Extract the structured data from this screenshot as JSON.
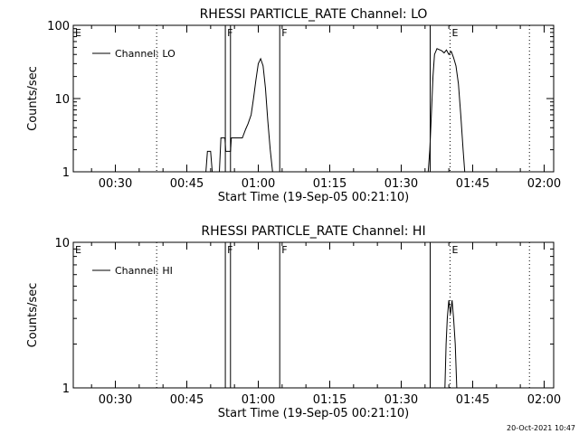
{
  "footer": {
    "timestamp": "20-Oct-2021 10:47"
  },
  "chart_data": [
    {
      "type": "line",
      "title": "RHESSI PARTICLE_RATE Channel: LO",
      "xlabel": "Start Time (19-Sep-05 00:21:10)",
      "ylabel": "Counts/sec",
      "yscale": "log",
      "ylim": [
        1,
        100
      ],
      "xlim": [
        "00:21:10",
        "02:02:00"
      ],
      "x_ticks": [
        "00:30",
        "00:45",
        "01:00",
        "01:15",
        "01:30",
        "01:45",
        "02:00"
      ],
      "y_ticks": [
        "1",
        "10",
        "100"
      ],
      "legend": {
        "position": "top-left",
        "entries": [
          "Channel: LO"
        ]
      },
      "markers": [
        {
          "time": "00:21:10",
          "label": "E",
          "style": "solid"
        },
        {
          "time": "00:38:40",
          "label": "",
          "style": "dotted"
        },
        {
          "time": "00:53:05",
          "label": "F",
          "style": "solid"
        },
        {
          "time": "00:54:10",
          "label": "",
          "style": "solid"
        },
        {
          "time": "01:04:30",
          "label": "F",
          "style": "solid"
        },
        {
          "time": "01:36:05",
          "label": "",
          "style": "solid"
        },
        {
          "time": "01:40:15",
          "label": "E",
          "style": "dotted"
        },
        {
          "time": "01:56:55",
          "label": "",
          "style": "dotted"
        }
      ],
      "series": [
        {
          "name": "Channel: LO",
          "points": [
            [
              "00:49:00",
              1
            ],
            [
              "00:49:20",
              1.9
            ],
            [
              "00:50:00",
              1.9
            ],
            [
              "00:50:20",
              1
            ],
            [
              "00:51:50",
              1
            ],
            [
              "00:52:10",
              2.9
            ],
            [
              "00:53:00",
              2.9
            ],
            [
              "00:53:10",
              1.9
            ],
            [
              "00:54:10",
              1.9
            ],
            [
              "00:54:20",
              2.9
            ],
            [
              "00:56:40",
              2.9
            ],
            [
              "00:57:20",
              3.8
            ],
            [
              "00:57:50",
              4.5
            ],
            [
              "00:58:30",
              6
            ],
            [
              "00:59:00",
              10
            ],
            [
              "00:59:30",
              18
            ],
            [
              "01:00:00",
              30
            ],
            [
              "01:00:30",
              35
            ],
            [
              "01:01:00",
              28
            ],
            [
              "01:01:30",
              14
            ],
            [
              "01:02:00",
              5
            ],
            [
              "01:02:30",
              2
            ],
            [
              "01:03:00",
              1
            ],
            [
              "01:35:40",
              1
            ],
            [
              "01:36:00",
              2
            ],
            [
              "01:36:20",
              6
            ],
            [
              "01:36:40",
              20
            ],
            [
              "01:37:00",
              40
            ],
            [
              "01:37:30",
              48
            ],
            [
              "01:38:30",
              45
            ],
            [
              "01:39:00",
              42
            ],
            [
              "01:39:30",
              46
            ],
            [
              "01:40:00",
              40
            ],
            [
              "01:40:30",
              44
            ],
            [
              "01:41:00",
              36
            ],
            [
              "01:41:30",
              28
            ],
            [
              "01:42:00",
              16
            ],
            [
              "01:42:30",
              6
            ],
            [
              "01:43:00",
              2
            ],
            [
              "01:43:20",
              1
            ]
          ]
        }
      ]
    },
    {
      "type": "line",
      "title": "RHESSI PARTICLE_RATE Channel: HI",
      "xlabel": "Start Time (19-Sep-05 00:21:10)",
      "ylabel": "Counts/sec",
      "yscale": "log",
      "ylim": [
        1,
        10
      ],
      "xlim": [
        "00:21:10",
        "02:02:00"
      ],
      "x_ticks": [
        "00:30",
        "00:45",
        "01:00",
        "01:15",
        "01:30",
        "01:45",
        "02:00"
      ],
      "y_ticks": [
        "1",
        "10"
      ],
      "legend": {
        "position": "top-left",
        "entries": [
          "Channel: HI"
        ]
      },
      "markers": [
        {
          "time": "00:21:10",
          "label": "E",
          "style": "solid"
        },
        {
          "time": "00:38:40",
          "label": "",
          "style": "dotted"
        },
        {
          "time": "00:53:05",
          "label": "F",
          "style": "solid"
        },
        {
          "time": "00:54:10",
          "label": "",
          "style": "solid"
        },
        {
          "time": "01:04:30",
          "label": "F",
          "style": "solid"
        },
        {
          "time": "01:36:05",
          "label": "",
          "style": "solid"
        },
        {
          "time": "01:40:15",
          "label": "E",
          "style": "dotted"
        },
        {
          "time": "01:56:55",
          "label": "",
          "style": "dotted"
        }
      ],
      "series": [
        {
          "name": "Channel: HI",
          "points": [
            [
              "01:39:10",
              1
            ],
            [
              "01:39:25",
              2
            ],
            [
              "01:39:40",
              3
            ],
            [
              "01:40:00",
              4
            ],
            [
              "01:40:20",
              3.2
            ],
            [
              "01:40:40",
              4
            ],
            [
              "01:41:00",
              3
            ],
            [
              "01:41:20",
              2
            ],
            [
              "01:41:40",
              1
            ]
          ]
        }
      ]
    }
  ]
}
